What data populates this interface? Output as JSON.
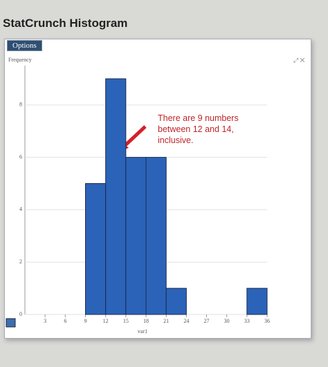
{
  "header": {
    "title": "StatCrunch Histogram",
    "button": "Options"
  },
  "chart_data": {
    "type": "histogram",
    "ylabel": "Frequency",
    "xlabel": "var1",
    "bins": [
      9,
      12,
      15,
      18,
      21,
      24,
      27,
      30,
      33,
      36
    ],
    "values": [
      5,
      9,
      6,
      6,
      1,
      0,
      0,
      0,
      1
    ],
    "color": "#2b63b9",
    "xlim": [
      0,
      36
    ],
    "xticks": [
      3,
      6,
      9,
      12,
      15,
      18,
      21,
      24,
      27,
      30,
      33,
      36
    ],
    "ylim": [
      0,
      9.5
    ],
    "yticks": [
      0,
      2,
      4,
      6,
      8
    ],
    "grid": true,
    "annotation": "There are 9 numbers between 12 and 14, inclusive."
  }
}
